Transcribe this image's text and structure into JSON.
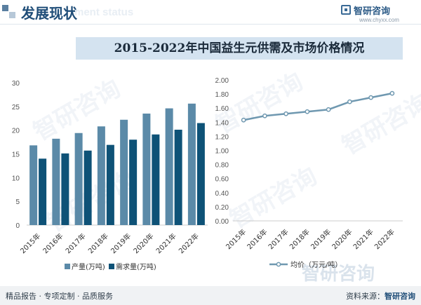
{
  "header": {
    "title": "发展现状",
    "ghost_text": "ment status",
    "brand": "智研咨询",
    "site": "www.chyxx.com"
  },
  "banner": {
    "title": "2015-2022年中国益生元供需及市场价格情况"
  },
  "watermark": {
    "text": "智研咨询"
  },
  "chart_data": [
    {
      "type": "bar",
      "categories": [
        "2015年",
        "2016年",
        "2017年",
        "2018年",
        "2019年",
        "2020年",
        "2021年",
        "2022年"
      ],
      "series": [
        {
          "name": "产量(万吨)",
          "color": "#5b8aa8",
          "values": [
            16.8,
            18.2,
            19.4,
            20.8,
            22.2,
            23.5,
            24.6,
            25.6
          ]
        },
        {
          "name": "需求量(万吨)",
          "color": "#0e5277",
          "values": [
            14.0,
            15.1,
            15.7,
            16.9,
            18.0,
            19.1,
            20.1,
            21.5
          ]
        }
      ],
      "ylim": [
        0,
        30
      ],
      "yticks": [
        0,
        5,
        10,
        15,
        20,
        25,
        30
      ],
      "legend": "bottom",
      "grid": false
    },
    {
      "type": "line",
      "categories": [
        "2015年",
        "2016年",
        "2017年",
        "2018年",
        "2019年",
        "2020年",
        "2021年",
        "2022年"
      ],
      "series": [
        {
          "name": "均价（万元/吨）",
          "color": "#6f98b0",
          "values": [
            1.43,
            1.49,
            1.52,
            1.55,
            1.58,
            1.69,
            1.75,
            1.81
          ]
        }
      ],
      "ylim": [
        0,
        2.0
      ],
      "yticks": [
        "0.00",
        "0.20",
        "0.40",
        "0.60",
        "0.80",
        "1.00",
        "1.20",
        "1.40",
        "1.60",
        "1.80",
        "2.00"
      ],
      "legend": "bottom",
      "grid": false
    }
  ],
  "footer": {
    "left": "精品报告 · 专项定制 · 品质服务",
    "source_label": "资料来源：",
    "source_brand": "智研咨询"
  }
}
